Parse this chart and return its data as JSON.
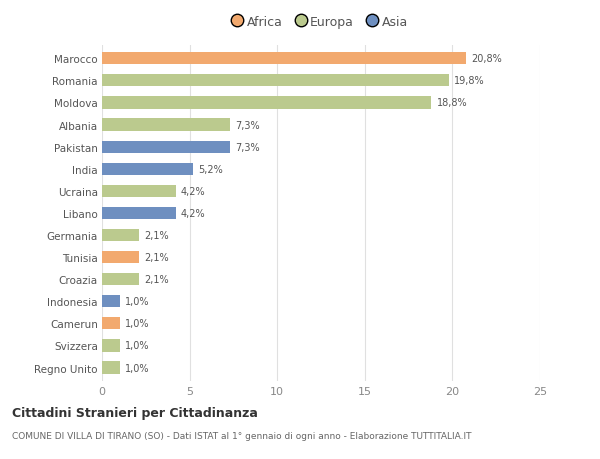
{
  "categories": [
    "Marocco",
    "Romania",
    "Moldova",
    "Albania",
    "Pakistan",
    "India",
    "Ucraina",
    "Libano",
    "Germania",
    "Tunisia",
    "Croazia",
    "Indonesia",
    "Camerun",
    "Svizzera",
    "Regno Unito"
  ],
  "values": [
    20.8,
    19.8,
    18.8,
    7.3,
    7.3,
    5.2,
    4.2,
    4.2,
    2.1,
    2.1,
    2.1,
    1.0,
    1.0,
    1.0,
    1.0
  ],
  "labels": [
    "20,8%",
    "19,8%",
    "18,8%",
    "7,3%",
    "7,3%",
    "5,2%",
    "4,2%",
    "4,2%",
    "2,1%",
    "2,1%",
    "2,1%",
    "1,0%",
    "1,0%",
    "1,0%",
    "1,0%"
  ],
  "bar_colors": [
    "#F2A96E",
    "#BBCA8E",
    "#BBCA8E",
    "#BBCA8E",
    "#6E8FC0",
    "#6E8FC0",
    "#BBCA8E",
    "#6E8FC0",
    "#BBCA8E",
    "#F2A96E",
    "#BBCA8E",
    "#6E8FC0",
    "#F2A96E",
    "#BBCA8E",
    "#BBCA8E"
  ],
  "xlim": [
    0,
    25
  ],
  "xticks": [
    0,
    5,
    10,
    15,
    20,
    25
  ],
  "title": "Cittadini Stranieri per Cittadinanza",
  "subtitle": "COMUNE DI VILLA DI TIRANO (SO) - Dati ISTAT al 1° gennaio di ogni anno - Elaborazione TUTTITALIA.IT",
  "legend_labels": [
    "Africa",
    "Europa",
    "Asia"
  ],
  "legend_colors": [
    "#F2A96E",
    "#BBCA8E",
    "#6E8FC0"
  ],
  "bg_color": "#ffffff",
  "grid_color": "#e0e0e0"
}
